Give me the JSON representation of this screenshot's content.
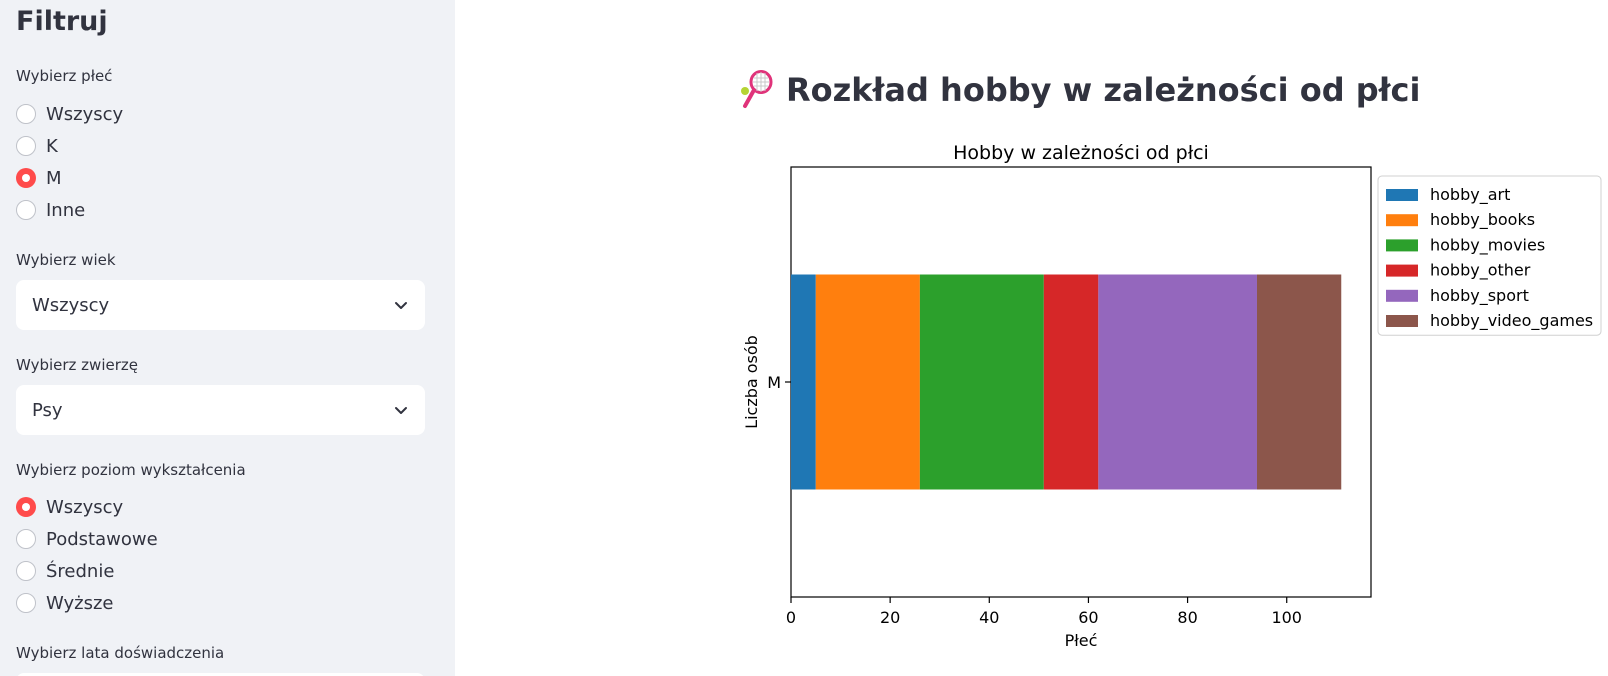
{
  "sidebar": {
    "title": "Filtruj",
    "gender": {
      "label": "Wybierz płeć",
      "options": [
        "Wszyscy",
        "K",
        "M",
        "Inne"
      ],
      "selected": "M"
    },
    "age": {
      "label": "Wybierz wiek",
      "value": "Wszyscy"
    },
    "animal": {
      "label": "Wybierz zwierzę",
      "value": "Psy"
    },
    "education": {
      "label": "Wybierz poziom wykształcenia",
      "options": [
        "Wszyscy",
        "Podstawowe",
        "Średnie",
        "Wyższe"
      ],
      "selected": "Wszyscy"
    },
    "experience": {
      "label": "Wybierz lata doświadczenia"
    }
  },
  "main": {
    "title": "Rozkład hobby w zależności od płci",
    "title_icon": "tennis-racket-icon"
  },
  "colors": {
    "accent": "#ff4b4b",
    "sidebar_bg": "#f0f2f6"
  },
  "chart_data": {
    "type": "bar",
    "orientation": "horizontal",
    "stacked": true,
    "title": "Hobby w zależności od płci",
    "xlabel": "Płeć",
    "ylabel": "Liczba osób",
    "categories": [
      "M"
    ],
    "xlim": [
      0,
      117
    ],
    "xticks": [
      0,
      20,
      40,
      60,
      80,
      100
    ],
    "legend_position": "outside-right-top",
    "grid": false,
    "series": [
      {
        "name": "hobby_art",
        "values": [
          5
        ],
        "color": "#1f77b4"
      },
      {
        "name": "hobby_books",
        "values": [
          21
        ],
        "color": "#ff7f0e"
      },
      {
        "name": "hobby_movies",
        "values": [
          25
        ],
        "color": "#2ca02c"
      },
      {
        "name": "hobby_other",
        "values": [
          11
        ],
        "color": "#d62728"
      },
      {
        "name": "hobby_sport",
        "values": [
          32
        ],
        "color": "#9467bd"
      },
      {
        "name": "hobby_video_games",
        "values": [
          17
        ],
        "color": "#8c564b"
      }
    ]
  }
}
